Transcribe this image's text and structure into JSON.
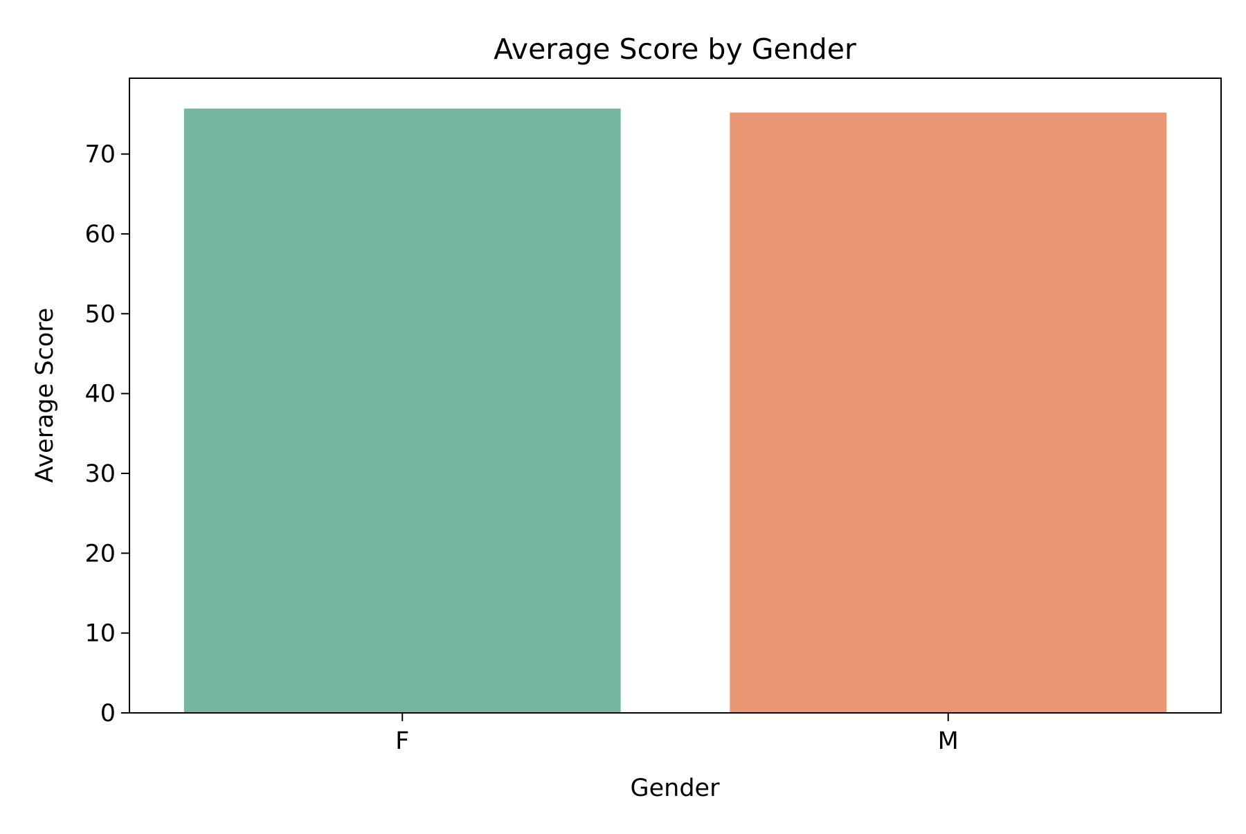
{
  "chart_data": {
    "type": "bar",
    "title": "Average Score by Gender",
    "xlabel": "Gender",
    "ylabel": "Average Score",
    "categories": [
      "F",
      "M"
    ],
    "values": [
      75.7,
      75.2
    ],
    "colors": [
      "#76b5a0",
      "#e99675"
    ],
    "ylim": [
      0,
      79.5
    ],
    "yticks": [
      0,
      10,
      20,
      30,
      40,
      50,
      60,
      70
    ],
    "grid": false,
    "legend": "none"
  }
}
